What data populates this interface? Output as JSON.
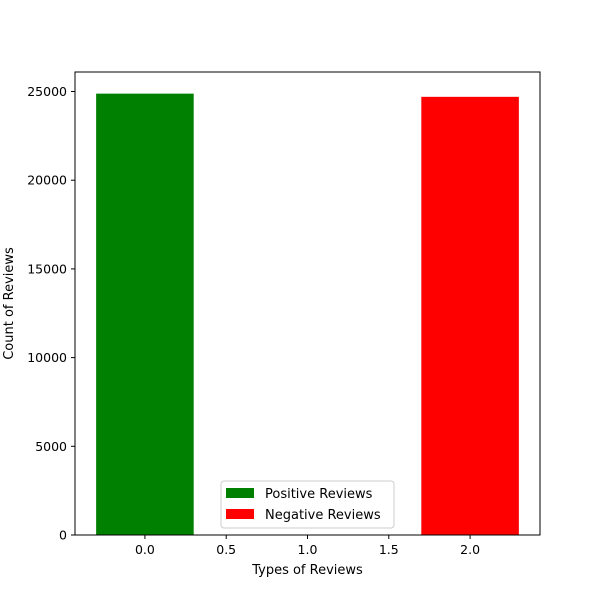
{
  "chart_data": {
    "type": "bar",
    "title": "",
    "xlabel": "Types of Reviews",
    "ylabel": "Count of Reviews",
    "bars": [
      {
        "x": 0.0,
        "value": 24880,
        "color": "#008000",
        "label": "Positive Reviews"
      },
      {
        "x": 2.0,
        "value": 24700,
        "color": "#ff0000",
        "label": "Negative Reviews"
      }
    ],
    "bar_width": 0.6,
    "xlim": [
      -0.43,
      2.43
    ],
    "ylim": [
      0,
      26100
    ],
    "xticks": [
      0.0,
      0.5,
      1.0,
      1.5,
      2.0
    ],
    "xtick_labels": [
      "0.0",
      "0.5",
      "1.0",
      "1.5",
      "2.0"
    ],
    "yticks": [
      0,
      5000,
      10000,
      15000,
      20000,
      25000
    ],
    "ytick_labels": [
      "0",
      "5000",
      "10000",
      "15000",
      "20000",
      "25000"
    ],
    "grid": false,
    "legend": {
      "position": "lower-center",
      "entries": [
        {
          "label": "Positive Reviews",
          "color": "#008000"
        },
        {
          "label": "Negative Reviews",
          "color": "#ff0000"
        }
      ]
    }
  }
}
